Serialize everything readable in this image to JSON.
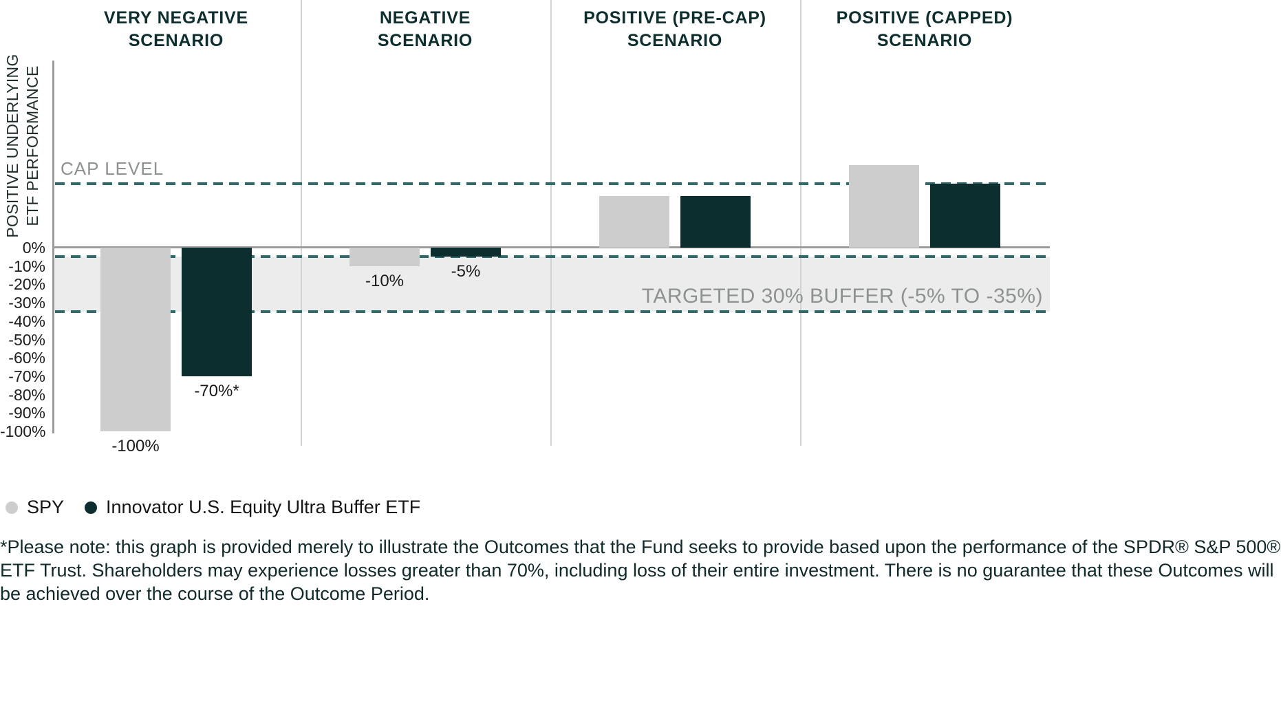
{
  "y_axis": {
    "title": "POSITIVE UNDERLYING\nETF PERFORMANCE"
  },
  "annotations": {
    "cap_level": "CAP LEVEL",
    "buffer": "TARGETED 30% BUFFER (-5% TO -35%)"
  },
  "chart_data": {
    "type": "bar",
    "categories": [
      "VERY NEGATIVE\nSCENARIO",
      "NEGATIVE\nSCENARIO",
      "POSITIVE (PRE-CAP)\nSCENARIO",
      "POSITIVE (CAPPED)\nSCENARIO"
    ],
    "series": [
      {
        "name": "SPY",
        "color": "#cdcdcd",
        "values": [
          -100,
          -10,
          28,
          45
        ],
        "value_labels": [
          "-100%",
          "-10%",
          "",
          ""
        ]
      },
      {
        "name": "Innovator U.S. Equity Ultra Buffer ETF",
        "color": "#0d2e2e",
        "values": [
          -70,
          -5,
          28,
          35
        ],
        "value_labels": [
          "-70%*",
          "-5%",
          "",
          ""
        ]
      }
    ],
    "y_ticks": [
      0,
      -10,
      -20,
      -30,
      -40,
      -50,
      -60,
      -70,
      -80,
      -90,
      -100
    ],
    "ylim": [
      -100,
      50
    ],
    "cap_level": 35,
    "buffer_range": [
      -5,
      -35
    ],
    "grid": false,
    "legend_position": "bottom-left"
  },
  "legend": [
    {
      "label": "SPY"
    },
    {
      "label": "Innovator U.S. Equity Ultra Buffer ETF"
    }
  ],
  "footnote": "*Please note: this graph is provided merely to illustrate the Outcomes that the Fund seeks to provide based upon the performance of the SPDR® S&P 500® ETF Trust. Shareholders may experience losses greater than 70%, including loss of their entire investment. There is no guarantee that these Outcomes will be achieved over the course of the Outcome Period.",
  "colors": {
    "dark_teal": "#0d2e2e",
    "light_gray_bar": "#cdcdcd",
    "buffer_band": "#ececec",
    "dashed_line": "#2f6b6b",
    "zero_line": "#9b9b9b",
    "axis_line": "#9b9b9b",
    "divider": "#d2d2d2",
    "muted_label": "#8d9291",
    "tick_text": "#1c1c1c",
    "footnote_text": "#102a2a"
  }
}
